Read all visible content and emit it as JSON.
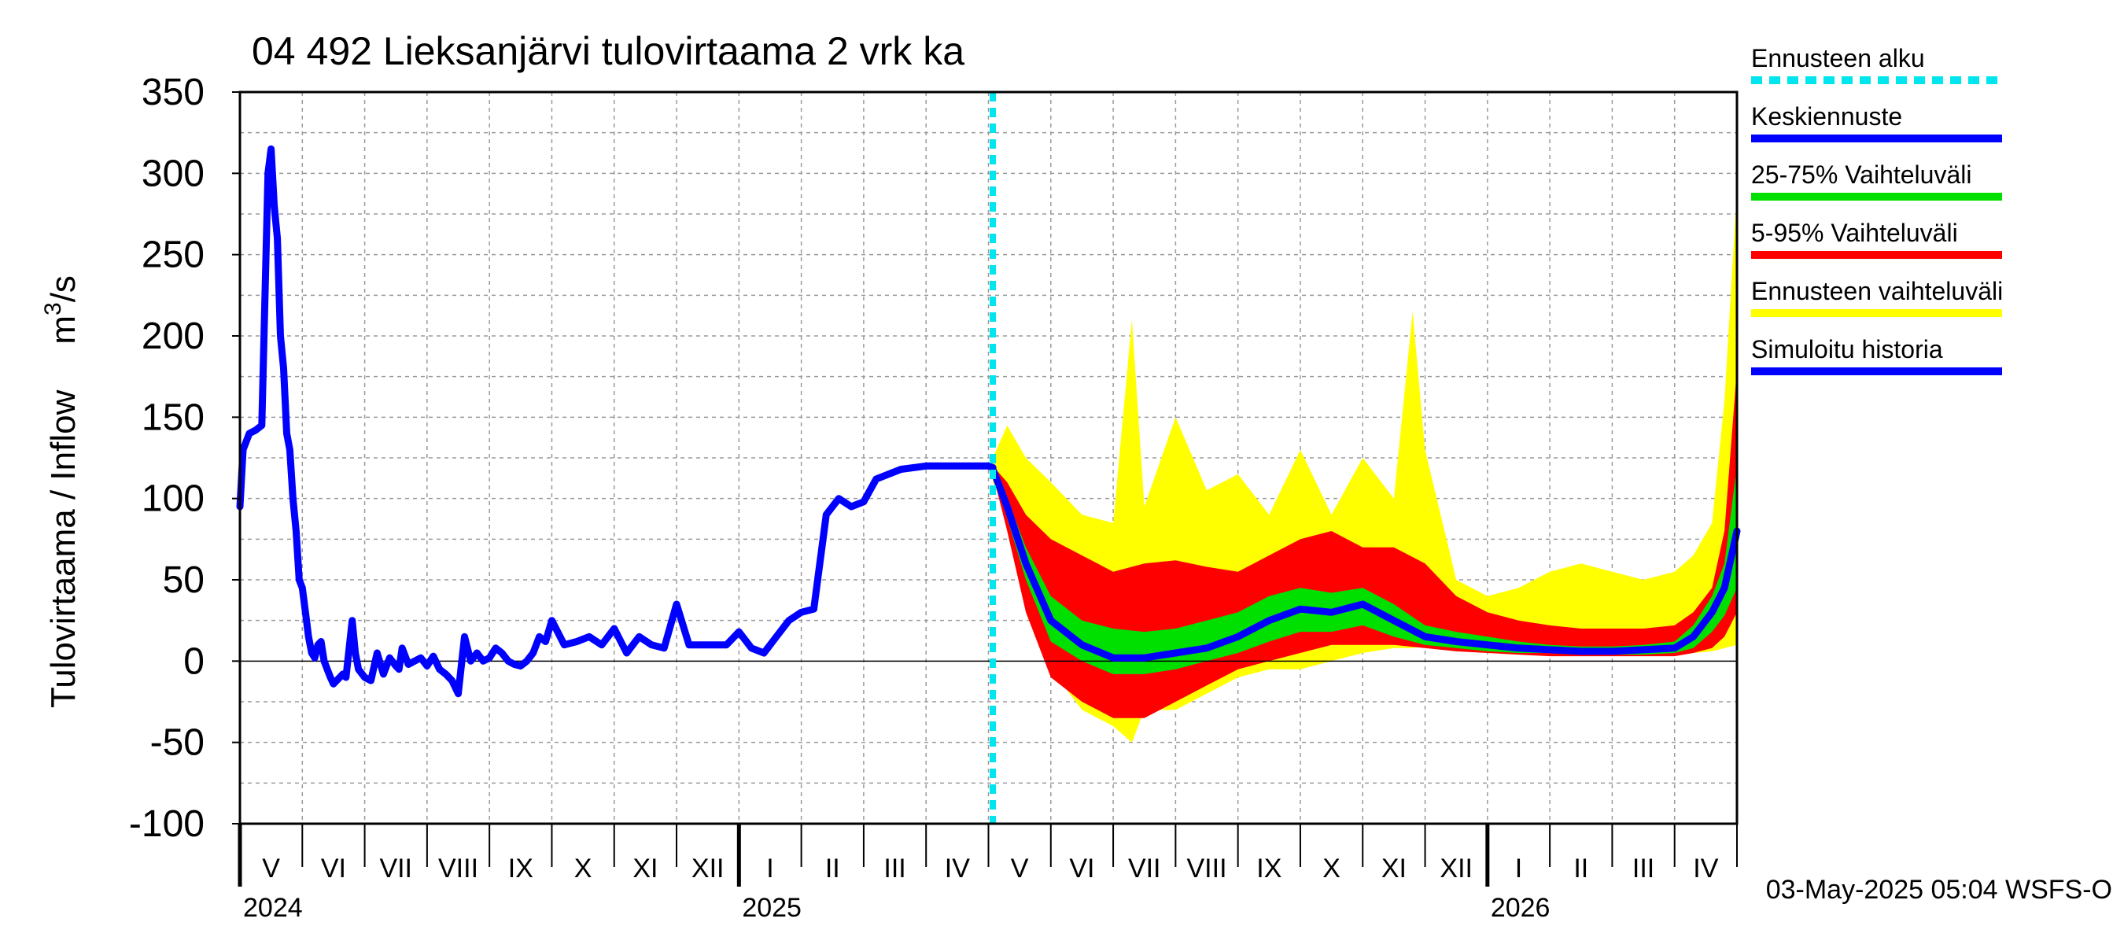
{
  "chart_data": {
    "type": "line",
    "title": "04 492 Lieksanjärvi tulovirtaama 2 vrk ka",
    "ylabel": "Tulovirtaama / Inflow",
    "yunit_prefix": "m",
    "yunit_sup": "3",
    "yunit_suffix": "/s",
    "ylim": [
      -100,
      350
    ],
    "yticks": [
      350,
      300,
      250,
      200,
      150,
      100,
      50,
      0,
      -50,
      -100
    ],
    "x_unit": "months since 2024-05-01",
    "xlim": [
      0,
      24
    ],
    "months": [
      "V",
      "VI",
      "VII",
      "VIII",
      "IX",
      "X",
      "XI",
      "XII",
      "I",
      "II",
      "III",
      "IV",
      "V",
      "VI",
      "VII",
      "VIII",
      "IX",
      "X",
      "XI",
      "XII",
      "I",
      "II",
      "III",
      "IV"
    ],
    "years": [
      {
        "label": "2024",
        "x": 0
      },
      {
        "label": "2025",
        "x": 8
      },
      {
        "label": "2026",
        "x": 20
      }
    ],
    "forecast_start": 12.07,
    "footer": "03-May-2025 05:04 WSFS-O",
    "legend": [
      {
        "label": "Ennusteen alku",
        "color": "#00e5ee",
        "style": "dashed"
      },
      {
        "label": "Keskiennuste",
        "color": "#0000ff",
        "style": "solid"
      },
      {
        "label": "25-75% Vaihteluväli",
        "color": "#00e000",
        "style": "solid"
      },
      {
        "label": "5-95% Vaihteluväli",
        "color": "#ff0000",
        "style": "solid"
      },
      {
        "label": "Ennusteen vaihteluväli",
        "color": "#ffff00",
        "style": "solid"
      },
      {
        "label": "Simuloitu historia",
        "color": "#0000ff",
        "style": "solid"
      }
    ],
    "series": [
      {
        "name": "Simuloitu historia",
        "color": "#0000ff",
        "x": [
          0,
          0.05,
          0.15,
          0.25,
          0.35,
          0.45,
          0.5,
          0.55,
          0.6,
          0.65,
          0.7,
          0.75,
          0.8,
          0.85,
          0.9,
          0.95,
          1.0,
          1.05,
          1.1,
          1.15,
          1.2,
          1.25,
          1.3,
          1.35,
          1.4,
          1.45,
          1.5,
          1.55,
          1.6,
          1.65,
          1.7,
          1.8,
          1.85,
          1.9,
          2.0,
          2.1,
          2.2,
          2.3,
          2.4,
          2.5,
          2.55,
          2.6,
          2.65,
          2.7,
          2.8,
          2.9,
          3.0,
          3.05,
          3.1,
          3.2,
          3.3,
          3.4,
          3.5,
          3.6,
          3.7,
          3.8,
          3.9,
          4.0,
          4.1,
          4.2,
          4.3,
          4.4,
          4.5,
          4.6,
          4.7,
          4.8,
          4.9,
          5.0,
          5.2,
          5.4,
          5.6,
          5.8,
          6.0,
          6.2,
          6.4,
          6.6,
          6.8,
          7.0,
          7.2,
          7.4,
          7.6,
          7.8,
          8.0,
          8.2,
          8.4,
          8.6,
          8.8,
          9.0,
          9.2,
          9.4,
          9.6,
          9.8,
          10.0,
          10.2,
          10.4,
          10.6,
          10.8,
          11.0,
          11.2,
          11.4,
          11.6,
          11.7,
          11.8,
          11.9,
          12.0,
          12.07
        ],
        "values": [
          95,
          130,
          140,
          142,
          145,
          300,
          315,
          280,
          260,
          200,
          180,
          140,
          130,
          100,
          80,
          50,
          45,
          30,
          15,
          5,
          2,
          10,
          12,
          0,
          -5,
          -10,
          -14,
          -12,
          -10,
          -8,
          -10,
          25,
          5,
          -5,
          -10,
          -12,
          5,
          -8,
          2,
          -3,
          -5,
          8,
          3,
          -2,
          0,
          2,
          -3,
          0,
          3,
          -5,
          -8,
          -12,
          -20,
          15,
          0,
          5,
          0,
          2,
          8,
          5,
          0,
          -2,
          -3,
          0,
          5,
          15,
          12,
          25,
          10,
          12,
          15,
          10,
          20,
          5,
          15,
          10,
          8,
          35,
          10,
          10,
          10,
          10,
          18,
          8,
          5,
          15,
          25,
          30,
          32,
          90,
          100,
          95,
          98,
          112,
          115,
          118,
          119,
          120,
          120,
          120,
          120,
          120,
          120,
          120,
          120,
          119
        ]
      },
      {
        "name": "Keskiennuste",
        "color": "#0000ff",
        "x": [
          12.07,
          12.3,
          12.6,
          13.0,
          13.5,
          14.0,
          14.5,
          15.0,
          15.5,
          16.0,
          16.5,
          17.0,
          17.5,
          18.0,
          18.5,
          19.0,
          19.5,
          20.0,
          20.5,
          21.0,
          21.5,
          22.0,
          22.5,
          23.0,
          23.3,
          23.6,
          23.8,
          24.0
        ],
        "values": [
          118,
          95,
          60,
          25,
          10,
          2,
          2,
          5,
          8,
          15,
          25,
          32,
          30,
          35,
          25,
          15,
          12,
          10,
          8,
          7,
          6,
          6,
          7,
          8,
          15,
          30,
          45,
          80
        ]
      }
    ],
    "bands": [
      {
        "name": "Ennusteen vaihteluväli",
        "color": "#ffff00",
        "x": [
          12.07,
          12.3,
          12.6,
          13.0,
          13.5,
          14.0,
          14.3,
          14.5,
          15.0,
          15.5,
          16.0,
          16.5,
          17.0,
          17.5,
          18.0,
          18.5,
          18.8,
          19.0,
          19.5,
          20.0,
          20.5,
          21.0,
          21.5,
          22.0,
          22.5,
          23.0,
          23.3,
          23.6,
          23.8,
          24.0
        ],
        "upper": [
          125,
          145,
          125,
          110,
          90,
          85,
          210,
          95,
          150,
          105,
          115,
          90,
          130,
          90,
          125,
          100,
          215,
          130,
          50,
          40,
          45,
          55,
          60,
          55,
          50,
          55,
          65,
          85,
          160,
          290
        ],
        "lower": [
          110,
          90,
          40,
          -5,
          -30,
          -40,
          -50,
          -30,
          -30,
          -20,
          -10,
          -5,
          -5,
          0,
          5,
          8,
          8,
          10,
          8,
          8,
          7,
          6,
          5,
          5,
          5,
          5,
          5,
          6,
          8,
          10
        ]
      },
      {
        "name": "5-95% Vaihteluväli",
        "color": "#ff0000",
        "x": [
          12.07,
          12.3,
          12.6,
          13.0,
          13.5,
          14.0,
          14.5,
          15.0,
          15.5,
          16.0,
          16.5,
          17.0,
          17.5,
          18.0,
          18.5,
          19.0,
          19.5,
          20.0,
          20.5,
          21.0,
          21.5,
          22.0,
          22.5,
          23.0,
          23.3,
          23.6,
          23.8,
          24.0
        ],
        "upper": [
          120,
          110,
          90,
          75,
          65,
          55,
          60,
          62,
          58,
          55,
          65,
          75,
          80,
          70,
          70,
          60,
          40,
          30,
          25,
          22,
          20,
          20,
          20,
          22,
          30,
          45,
          80,
          180
        ],
        "lower": [
          115,
          80,
          30,
          -10,
          -25,
          -35,
          -35,
          -25,
          -15,
          -5,
          0,
          5,
          10,
          10,
          10,
          8,
          6,
          5,
          4,
          3,
          3,
          3,
          3,
          3,
          5,
          8,
          15,
          30
        ]
      },
      {
        "name": "25-75% Vaihteluväli",
        "color": "#00e000",
        "x": [
          12.07,
          12.3,
          12.6,
          13.0,
          13.5,
          14.0,
          14.5,
          15.0,
          15.5,
          16.0,
          16.5,
          17.0,
          17.5,
          18.0,
          18.5,
          19.0,
          19.5,
          20.0,
          20.5,
          21.0,
          21.5,
          22.0,
          22.5,
          23.0,
          23.3,
          23.6,
          23.8,
          24.0
        ],
        "upper": [
          119,
          100,
          70,
          40,
          25,
          20,
          18,
          20,
          25,
          30,
          40,
          45,
          42,
          45,
          35,
          22,
          18,
          15,
          12,
          10,
          9,
          9,
          10,
          12,
          22,
          40,
          60,
          120
        ],
        "lower": [
          117,
          88,
          50,
          12,
          0,
          -8,
          -8,
          -5,
          0,
          5,
          12,
          18,
          18,
          22,
          15,
          10,
          8,
          6,
          5,
          5,
          4,
          4,
          4,
          5,
          8,
          18,
          28,
          45
        ]
      }
    ]
  }
}
